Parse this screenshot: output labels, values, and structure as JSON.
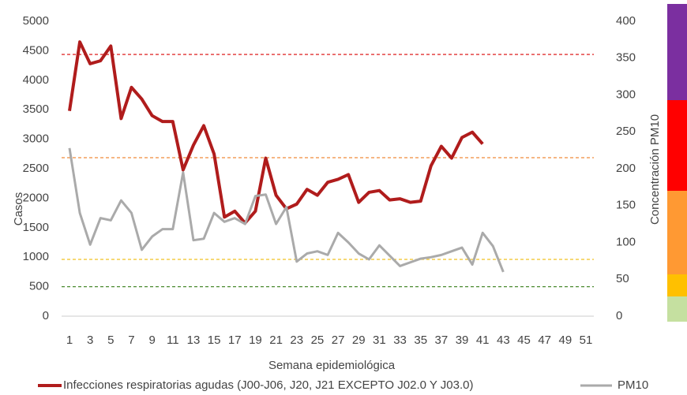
{
  "chart_data": {
    "type": "line",
    "x_label": "Semana epidemiológica",
    "y_label": "Casos",
    "y2_label": "Concentración PM10",
    "x": [
      1,
      2,
      3,
      4,
      5,
      6,
      7,
      8,
      9,
      10,
      11,
      12,
      13,
      14,
      15,
      16,
      17,
      18,
      19,
      20,
      21,
      22,
      23,
      24,
      25,
      26,
      27,
      28,
      29,
      30,
      31,
      32,
      33,
      34,
      35,
      36,
      37,
      38,
      39,
      40,
      41,
      42,
      43
    ],
    "xlim": [
      1,
      51
    ],
    "xticks": [
      1,
      3,
      5,
      7,
      9,
      11,
      13,
      15,
      17,
      19,
      21,
      23,
      25,
      27,
      29,
      31,
      33,
      35,
      37,
      39,
      41,
      43,
      45,
      47,
      49,
      51
    ],
    "ylim": [
      0,
      5000
    ],
    "yticks": [
      0,
      500,
      1000,
      1500,
      2000,
      2500,
      3000,
      3500,
      4000,
      4500,
      5000
    ],
    "y2lim": [
      0,
      400
    ],
    "y2ticks": [
      0,
      50,
      100,
      150,
      200,
      250,
      300,
      350,
      400
    ],
    "series": [
      {
        "name": "Infecciones respiratorias agudas (J00-J06, J20, J21 EXCEPTO J02.0 Y J03.0)",
        "color": "#b01c1c",
        "values": [
          3480,
          4650,
          4280,
          4330,
          4580,
          3350,
          3880,
          3680,
          3400,
          3300,
          3300,
          2480,
          2900,
          3230,
          2750,
          1680,
          1780,
          1580,
          1780,
          2680,
          2050,
          1820,
          1900,
          2150,
          2050,
          2270,
          2320,
          2400,
          1930,
          2100,
          2130,
          1970,
          1990,
          1930,
          1950,
          2550,
          2880,
          2680,
          3030,
          3120,
          2920,
          null,
          null
        ]
      },
      {
        "name": "PM10",
        "color": "#aaaaaa",
        "axis": "y2",
        "values": [
          228,
          140,
          97,
          133,
          130,
          157,
          140,
          90,
          108,
          118,
          118,
          195,
          103,
          105,
          140,
          128,
          133,
          125,
          163,
          165,
          125,
          148,
          74,
          85,
          88,
          83,
          113,
          100,
          85,
          77,
          96,
          82,
          68,
          73,
          78,
          80,
          83,
          88,
          93,
          70,
          113,
          95,
          60
        ]
      }
    ],
    "reference_lines": [
      {
        "value": 355,
        "color": "#e03030",
        "axis": "y2"
      },
      {
        "value": 215,
        "color": "#f08a3a",
        "axis": "y2"
      },
      {
        "value": 77,
        "color": "#f0c020",
        "axis": "y2"
      },
      {
        "value": 40,
        "color": "#4a8a30",
        "axis": "y2"
      }
    ]
  }
}
